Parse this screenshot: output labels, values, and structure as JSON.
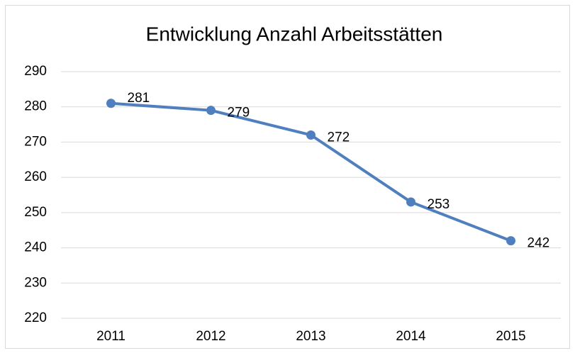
{
  "chart_data": {
    "type": "line",
    "title": "Entwicklung Anzahl Arbeitsstätten",
    "categories": [
      "2011",
      "2012",
      "2013",
      "2014",
      "2015"
    ],
    "series": [
      {
        "name": "Anzahl Arbeitsstätten",
        "color": "#4f7fbf",
        "values": [
          281,
          279,
          272,
          253,
          242
        ]
      }
    ],
    "ylim": [
      220,
      290
    ],
    "yticks": [
      220,
      230,
      240,
      250,
      260,
      270,
      280,
      290
    ],
    "grid": true
  }
}
